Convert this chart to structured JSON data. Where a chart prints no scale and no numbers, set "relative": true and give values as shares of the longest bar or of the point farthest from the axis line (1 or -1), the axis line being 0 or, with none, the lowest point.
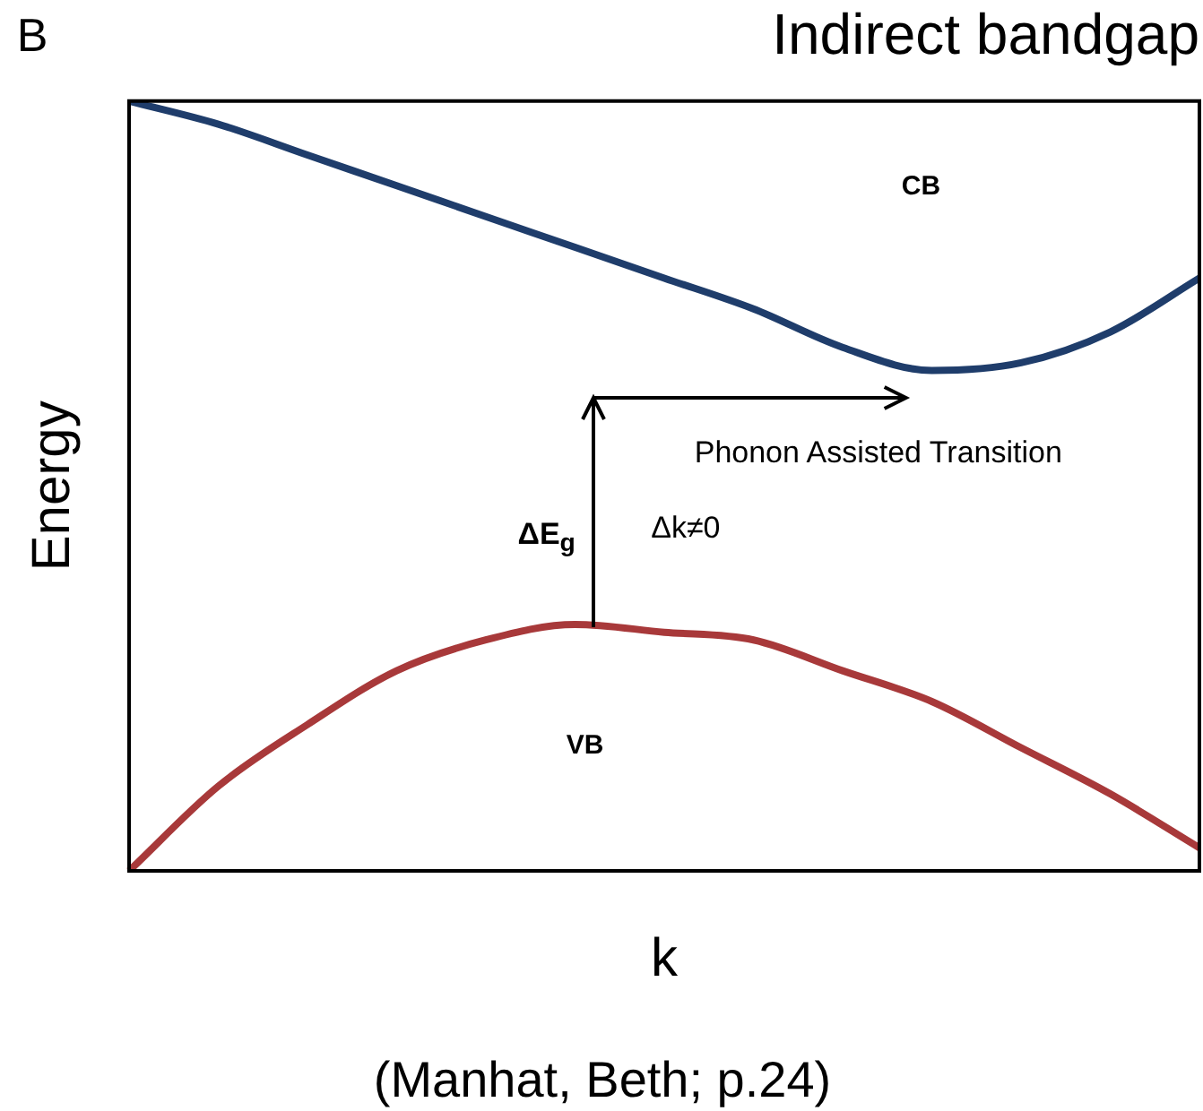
{
  "chart_data": {
    "type": "line",
    "title": "Indirect bandgap",
    "xlabel": "k",
    "ylabel": "Energy",
    "relative": true,
    "tick_labels": false,
    "legend": false,
    "grid": false,
    "marker": "none",
    "categories": [
      null,
      null,
      null,
      null,
      null,
      null,
      null,
      null,
      null,
      null,
      null,
      null,
      null
    ],
    "series": [
      {
        "color": "#1f3d6b",
        "values": [
          1.0,
          0.97,
          0.93,
          0.89,
          0.85,
          0.81,
          0.77,
          0.73,
          0.68,
          0.65,
          0.66,
          0.7,
          0.77
        ]
      },
      {
        "color": "#a8393a",
        "values": [
          0,
          0.11,
          0.19,
          0.26,
          0.3,
          0.32,
          0.31,
          0.3,
          0.26,
          0.22,
          0.16,
          0.1,
          0.03
        ]
      }
    ],
    "annotations": [
      "CB",
      "VB",
      "Phonon Assisted Transition",
      "ΔE$_{g}$",
      "Δk≠0",
      "B",
      "(Manhat, Beth; p.24)"
    ]
  }
}
